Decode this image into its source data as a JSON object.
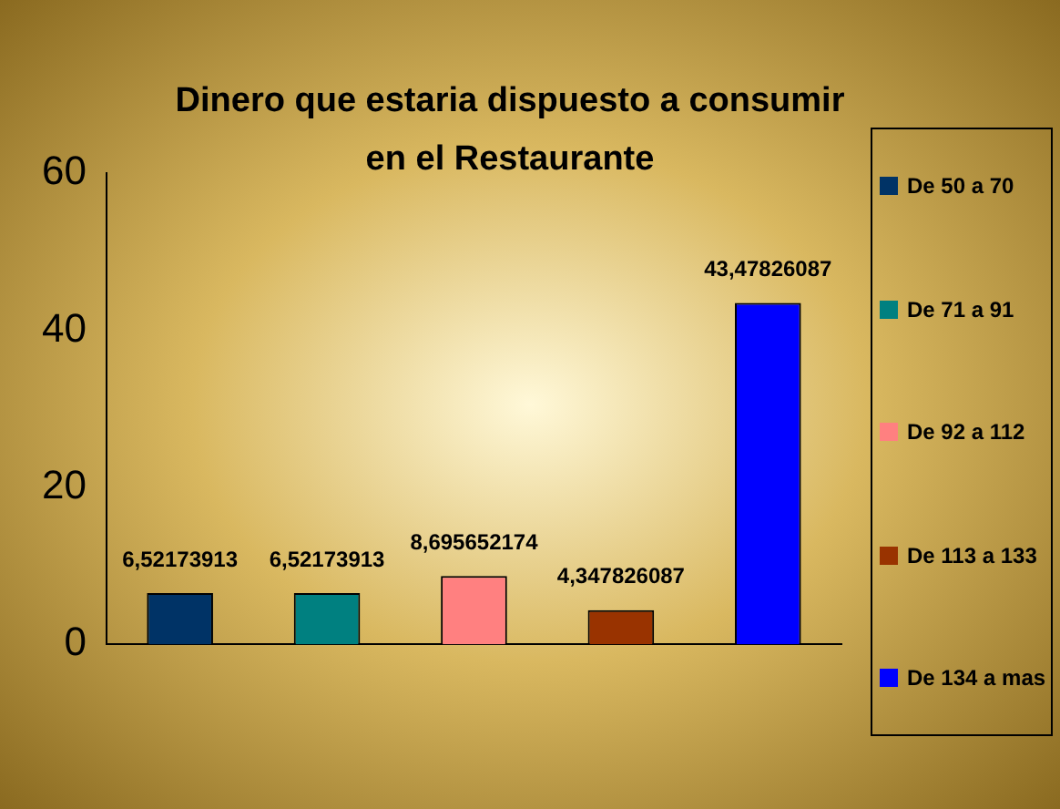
{
  "chart_data": {
    "type": "bar",
    "title": "Dinero que estaria dispuesto a consumir en el Restaurante",
    "categories": [
      null,
      null,
      null,
      null,
      null
    ],
    "series": [
      {
        "name": "De 50 a 70",
        "color": "#003366",
        "values": [
          6.52173913,
          null,
          null,
          null,
          null
        ],
        "value_labels": [
          "6,52173913",
          null,
          null,
          null,
          null
        ]
      },
      {
        "name": "De 71 a 91",
        "color": "#008080",
        "values": [
          null,
          6.52173913,
          null,
          null,
          null
        ],
        "value_labels": [
          null,
          "6,52173913",
          null,
          null,
          null
        ]
      },
      {
        "name": "De 92 a 112",
        "color": "#ff8080",
        "values": [
          null,
          null,
          8.695652174,
          null,
          null
        ],
        "value_labels": [
          null,
          null,
          "8,695652174",
          null,
          null
        ]
      },
      {
        "name": "De 113 a 133",
        "color": "#993300",
        "values": [
          null,
          null,
          null,
          4.347826087,
          null
        ],
        "value_labels": [
          null,
          null,
          null,
          "4,347826087",
          null
        ]
      },
      {
        "name": "De 134 a mas",
        "color": "#0000ff",
        "values": [
          null,
          null,
          null,
          null,
          43.47826087
        ],
        "value_labels": [
          null,
          null,
          null,
          null,
          "43,47826087"
        ]
      }
    ],
    "ylim": [
      0,
      60
    ],
    "yticks": [
      0,
      20,
      40,
      60
    ],
    "grid": false,
    "legend": "right"
  }
}
